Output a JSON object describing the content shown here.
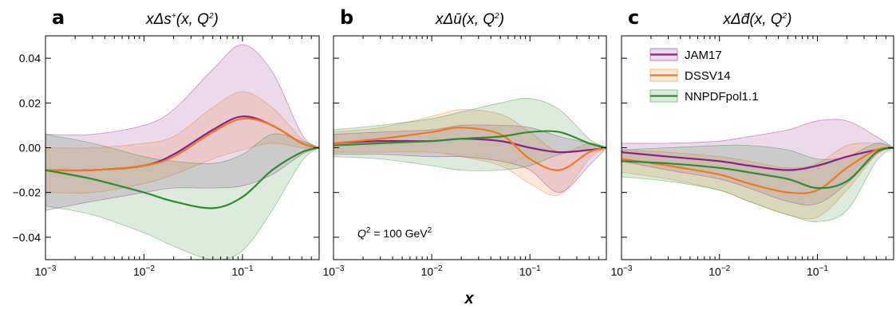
{
  "figure": {
    "xlabel": "x"
  },
  "colors": {
    "JAM17": "#8B1F8C",
    "DSSV14": "#F07820",
    "NNPDFpol1.1": "#2E8B2E"
  },
  "legend": {
    "position": "upper-right of panel c",
    "items": [
      {
        "label": "JAM17",
        "color": "#8B1F8C"
      },
      {
        "label": "DSSV14",
        "color": "#F07820"
      },
      {
        "label": "NNPDFpol1.1",
        "color": "#2E8B2E"
      }
    ]
  },
  "annotation": {
    "text_pre": "Q",
    "text_sup": "2",
    "text_mid": " = 100 GeV",
    "text_sup2": "2"
  },
  "chart_data": [
    {
      "type": "area",
      "panel": "a",
      "title_pre": "xΔs",
      "title_sup": "+",
      "title_post": "(x, Q",
      "title_sup2": "2",
      "title_end": ")",
      "xscale": "log",
      "xlim": [
        0.001,
        0.6
      ],
      "ylim": [
        -0.05,
        0.05
      ],
      "xticks": [
        {
          "base": "10",
          "exp": "−3"
        },
        {
          "base": "10",
          "exp": "−2"
        },
        {
          "base": "10",
          "exp": "−1"
        }
      ],
      "yticks": [
        "−0.04",
        "−0.02",
        "0.00",
        "0.02",
        "0.04"
      ],
      "yticks_values": [
        -0.04,
        -0.02,
        0.0,
        0.02,
        0.04
      ],
      "series": [
        {
          "name": "JAM17",
          "x": [
            0.001,
            0.003,
            0.01,
            0.02,
            0.05,
            0.1,
            0.2,
            0.4,
            0.6
          ],
          "y": [
            -0.01,
            -0.01,
            -0.008,
            -0.003,
            0.008,
            0.014,
            0.01,
            0.002,
            0.0
          ],
          "lower": [
            -0.028,
            -0.024,
            -0.02,
            -0.018,
            -0.018,
            -0.017,
            -0.012,
            -0.003,
            0.0
          ],
          "upper": [
            0.006,
            0.006,
            0.01,
            0.017,
            0.035,
            0.046,
            0.034,
            0.006,
            0.0
          ]
        },
        {
          "name": "DSSV14",
          "x": [
            0.001,
            0.003,
            0.01,
            0.02,
            0.05,
            0.1,
            0.2,
            0.4,
            0.6
          ],
          "y": [
            -0.01,
            -0.01,
            -0.008,
            -0.004,
            0.007,
            0.013,
            0.01,
            0.002,
            0.0
          ],
          "lower": [
            -0.02,
            -0.02,
            -0.016,
            -0.012,
            -0.005,
            -0.001,
            0.002,
            0.0,
            0.0
          ],
          "upper": [
            0.0,
            0.0,
            0.002,
            0.005,
            0.018,
            0.025,
            0.018,
            0.004,
            0.0
          ]
        },
        {
          "name": "NNPDFpol1.1",
          "x": [
            0.001,
            0.003,
            0.01,
            0.02,
            0.05,
            0.1,
            0.2,
            0.4,
            0.6
          ],
          "y": [
            -0.01,
            -0.014,
            -0.02,
            -0.024,
            -0.027,
            -0.022,
            -0.01,
            -0.002,
            0.0
          ],
          "lower": [
            -0.026,
            -0.03,
            -0.038,
            -0.044,
            -0.05,
            -0.046,
            -0.028,
            -0.006,
            0.0
          ],
          "upper": [
            0.006,
            0.002,
            -0.004,
            -0.006,
            -0.007,
            -0.003,
            0.006,
            0.003,
            0.0
          ]
        }
      ]
    },
    {
      "type": "area",
      "panel": "b",
      "title_pre": "xΔū",
      "title_sup": "",
      "title_post": "(x, Q",
      "title_sup2": "2",
      "title_end": ")",
      "xscale": "log",
      "xlim": [
        0.001,
        0.6
      ],
      "ylim": [
        -0.05,
        0.05
      ],
      "xticks": [
        {
          "base": "10",
          "exp": "−3"
        },
        {
          "base": "10",
          "exp": "−2"
        },
        {
          "base": "10",
          "exp": "−1"
        }
      ],
      "yticks": [],
      "yticks_values": [
        -0.04,
        -0.02,
        0.0,
        0.02,
        0.04
      ],
      "series": [
        {
          "name": "JAM17",
          "x": [
            0.001,
            0.003,
            0.01,
            0.02,
            0.05,
            0.1,
            0.2,
            0.4,
            0.6
          ],
          "y": [
            0.002,
            0.003,
            0.003,
            0.004,
            0.003,
            0.0,
            -0.002,
            -0.001,
            0.0
          ],
          "lower": [
            -0.003,
            -0.003,
            -0.004,
            -0.004,
            -0.006,
            -0.01,
            -0.02,
            -0.008,
            0.0
          ],
          "upper": [
            0.006,
            0.007,
            0.008,
            0.01,
            0.01,
            0.009,
            0.005,
            0.002,
            0.0
          ]
        },
        {
          "name": "DSSV14",
          "x": [
            0.001,
            0.003,
            0.01,
            0.02,
            0.05,
            0.1,
            0.2,
            0.4,
            0.6
          ],
          "y": [
            0.002,
            0.004,
            0.007,
            0.009,
            0.006,
            -0.005,
            -0.01,
            -0.002,
            0.0
          ],
          "lower": [
            -0.002,
            -0.002,
            -0.002,
            -0.004,
            -0.008,
            -0.016,
            -0.021,
            -0.005,
            0.0
          ],
          "upper": [
            0.007,
            0.009,
            0.014,
            0.017,
            0.015,
            0.007,
            -0.002,
            0.002,
            0.0
          ]
        },
        {
          "name": "NNPDFpol1.1",
          "x": [
            0.001,
            0.003,
            0.01,
            0.02,
            0.05,
            0.1,
            0.2,
            0.4,
            0.6
          ],
          "y": [
            0.001,
            0.002,
            0.003,
            0.004,
            0.005,
            0.007,
            0.007,
            0.002,
            0.0
          ],
          "lower": [
            -0.004,
            -0.005,
            -0.008,
            -0.01,
            -0.01,
            -0.008,
            -0.003,
            -0.001,
            0.0
          ],
          "upper": [
            0.008,
            0.01,
            0.013,
            0.016,
            0.02,
            0.022,
            0.017,
            0.004,
            0.0
          ]
        }
      ]
    },
    {
      "type": "area",
      "panel": "c",
      "title_pre": "xΔd̄",
      "title_sup": "",
      "title_post": "(x, Q",
      "title_sup2": "2",
      "title_end": ")",
      "xscale": "log",
      "xlim": [
        0.001,
        0.6
      ],
      "ylim": [
        -0.05,
        0.05
      ],
      "xticks": [
        {
          "base": "10",
          "exp": "−3"
        },
        {
          "base": "10",
          "exp": "−2"
        },
        {
          "base": "10",
          "exp": "−1"
        }
      ],
      "yticks": [],
      "yticks_values": [
        -0.04,
        -0.02,
        0.0,
        0.02,
        0.04
      ],
      "series": [
        {
          "name": "JAM17",
          "x": [
            0.001,
            0.003,
            0.01,
            0.02,
            0.05,
            0.1,
            0.2,
            0.4,
            0.6
          ],
          "y": [
            -0.002,
            -0.004,
            -0.006,
            -0.008,
            -0.01,
            -0.008,
            -0.004,
            -0.001,
            0.0
          ],
          "lower": [
            -0.006,
            -0.01,
            -0.014,
            -0.018,
            -0.024,
            -0.025,
            -0.016,
            -0.003,
            0.0
          ],
          "upper": [
            0.002,
            0.002,
            0.003,
            0.005,
            0.008,
            0.012,
            0.012,
            0.005,
            0.0
          ]
        },
        {
          "name": "DSSV14",
          "x": [
            0.001,
            0.003,
            0.01,
            0.02,
            0.05,
            0.1,
            0.2,
            0.4,
            0.6
          ],
          "y": [
            -0.005,
            -0.008,
            -0.012,
            -0.016,
            -0.02,
            -0.019,
            -0.009,
            -0.001,
            0.0
          ],
          "lower": [
            -0.011,
            -0.014,
            -0.019,
            -0.024,
            -0.03,
            -0.031,
            -0.019,
            -0.003,
            0.0
          ],
          "upper": [
            -0.001,
            -0.002,
            -0.004,
            -0.006,
            -0.009,
            -0.007,
            0.001,
            0.002,
            0.0
          ]
        },
        {
          "name": "NNPDFpol1.1",
          "x": [
            0.001,
            0.003,
            0.01,
            0.02,
            0.05,
            0.1,
            0.2,
            0.4,
            0.6
          ],
          "y": [
            -0.006,
            -0.007,
            -0.009,
            -0.011,
            -0.014,
            -0.018,
            -0.015,
            -0.002,
            0.0
          ],
          "lower": [
            -0.013,
            -0.015,
            -0.019,
            -0.024,
            -0.03,
            -0.033,
            -0.028,
            -0.006,
            0.0
          ],
          "upper": [
            -0.001,
            0.0,
            0.001,
            0.001,
            -0.001,
            -0.005,
            -0.004,
            0.002,
            0.0
          ]
        }
      ]
    }
  ]
}
